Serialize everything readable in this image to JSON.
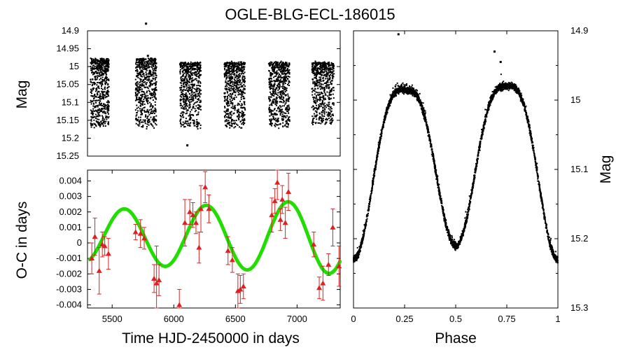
{
  "title": "OGLE-BLG-ECL-186015",
  "chart_data": [
    {
      "id": "lightcurve_time",
      "type": "scatter",
      "ylabel": "Mag",
      "xlim": [
        5300,
        7350
      ],
      "ylim": [
        15.25,
        14.9
      ],
      "y_inverted": true,
      "yticks": [
        "14.9",
        "14.95",
        "15",
        "15.05",
        "15.1",
        "15.15",
        "15.2",
        "15.25"
      ],
      "seasons": [
        {
          "x": [
            5325,
            5475
          ],
          "mag": [
            14.98,
            15.17
          ]
        },
        {
          "x": [
            5690,
            5860
          ],
          "mag": [
            14.98,
            15.17
          ]
        },
        {
          "x": [
            6050,
            6220
          ],
          "mag": [
            14.99,
            15.17
          ]
        },
        {
          "x": [
            6410,
            6580
          ],
          "mag": [
            14.99,
            15.17
          ]
        },
        {
          "x": [
            6770,
            6940
          ],
          "mag": [
            14.99,
            15.17
          ]
        },
        {
          "x": [
            7120,
            7300
          ],
          "mag": [
            14.99,
            15.16
          ]
        }
      ],
      "outliers": [
        {
          "x": 5775,
          "mag": 14.88
        },
        {
          "x": 5790,
          "mag": 14.97
        },
        {
          "x": 6110,
          "mag": 15.22
        }
      ]
    },
    {
      "id": "oc_diagram",
      "type": "scatter",
      "xlabel": "Time HJD-2450000 in days",
      "ylabel": "O-C in days",
      "xlim": [
        5300,
        7350
      ],
      "ylim": [
        -0.0042,
        0.0047
      ],
      "xticks": [
        "5500",
        "6000",
        "6500",
        "7000"
      ],
      "yticks": [
        "0.004",
        "0.003",
        "0.002",
        "0.001",
        "0",
        "-0.001",
        "-0.002",
        "-0.003",
        "-0.004"
      ],
      "fit": {
        "name": "sinusoidal fit",
        "color": "#22dd00",
        "model": {
          "offset": 0.0004,
          "amp_start": 0.0017,
          "amp_end": 0.0024,
          "period": 665,
          "phase_x0": 5430,
          "start": 5320,
          "end": 7350
        }
      },
      "points": [
        {
          "x": 5335,
          "y": -0.001,
          "err": 0.001
        },
        {
          "x": 5360,
          "y": 0.0004,
          "err": 0.0012
        },
        {
          "x": 5395,
          "y": -0.0018,
          "err": 0.0015
        },
        {
          "x": 5420,
          "y": -0.0001,
          "err": 0.0008
        },
        {
          "x": 5440,
          "y": -0.0002,
          "err": 0.0006
        },
        {
          "x": 5470,
          "y": -0.0007,
          "err": 0.001
        },
        {
          "x": 5690,
          "y": 0.0007,
          "err": 0.0005
        },
        {
          "x": 5730,
          "y": 0.0006,
          "err": 0.0009
        },
        {
          "x": 5760,
          "y": 0.0003,
          "err": 0.0007
        },
        {
          "x": 5840,
          "y": -0.0023,
          "err": 0.0009
        },
        {
          "x": 5860,
          "y": -0.0026,
          "err": 0.0024
        },
        {
          "x": 5880,
          "y": -0.0024,
          "err": 0.001
        },
        {
          "x": 6045,
          "y": -0.004,
          "err": 0.001
        },
        {
          "x": 6090,
          "y": 0.0013,
          "err": 0.0015
        },
        {
          "x": 6130,
          "y": 0.002,
          "err": 0.0008
        },
        {
          "x": 6155,
          "y": 0.0018,
          "err": 0.0008
        },
        {
          "x": 6180,
          "y": 0.0013,
          "err": 0.0007
        },
        {
          "x": 6205,
          "y": -0.0003,
          "err": 0.001
        },
        {
          "x": 6220,
          "y": 0.0022,
          "err": 0.0015
        },
        {
          "x": 6255,
          "y": 0.0036,
          "err": 0.001
        },
        {
          "x": 6285,
          "y": 0.0022,
          "err": 0.0009
        },
        {
          "x": 6440,
          "y": -0.0005,
          "err": 0.0009
        },
        {
          "x": 6475,
          "y": -0.0011,
          "err": 0.0008
        },
        {
          "x": 6520,
          "y": -0.0031,
          "err": 0.0011
        },
        {
          "x": 6540,
          "y": -0.003,
          "err": 0.0009
        },
        {
          "x": 6565,
          "y": -0.0028,
          "err": 0.0008
        },
        {
          "x": 6795,
          "y": 0.0018,
          "err": 0.0011
        },
        {
          "x": 6820,
          "y": 0.0027,
          "err": 0.0008
        },
        {
          "x": 6840,
          "y": 0.0039,
          "err": 0.0011
        },
        {
          "x": 6865,
          "y": 0.0015,
          "err": 0.0007
        },
        {
          "x": 6880,
          "y": 0.0028,
          "err": 0.0009
        },
        {
          "x": 6905,
          "y": 0.0013,
          "err": 0.001
        },
        {
          "x": 6930,
          "y": 0.0033,
          "err": 0.0012
        },
        {
          "x": 7135,
          "y": -0.0001,
          "err": 0.0008
        },
        {
          "x": 7180,
          "y": -0.0029,
          "err": 0.0007
        },
        {
          "x": 7210,
          "y": -0.0026,
          "err": 0.0011
        },
        {
          "x": 7255,
          "y": -0.0014,
          "err": 0.0007
        },
        {
          "x": 7290,
          "y": 0.001,
          "err": 0.0012
        },
        {
          "x": 7340,
          "y": -0.0015,
          "err": 0.0013
        }
      ]
    },
    {
      "id": "phased_lightcurve",
      "type": "scatter",
      "xlabel": "Phase",
      "ylabel": "Mag",
      "xlim": [
        0,
        1
      ],
      "ylim": [
        15.3,
        14.9
      ],
      "y_inverted": true,
      "xticks": [
        "0",
        "0.25",
        "0.5",
        "0.75",
        "1"
      ],
      "yticks": [
        "14.9",
        "15",
        "15.1",
        "15.2",
        "15.3"
      ],
      "shape": {
        "max_mag_1": 14.985,
        "max_phase_1": 0.25,
        "max_mag_2": 14.98,
        "max_phase_2": 0.75,
        "primary_min_phase": 0.0,
        "primary_min_mag": 15.23,
        "secondary_min_phase": 0.5,
        "secondary_min_mag": 15.21
      },
      "outliers": [
        {
          "phase": 0.22,
          "mag": 14.905
        },
        {
          "phase": 0.69,
          "mag": 14.93
        },
        {
          "phase": 0.72,
          "mag": 14.945
        }
      ]
    }
  ]
}
